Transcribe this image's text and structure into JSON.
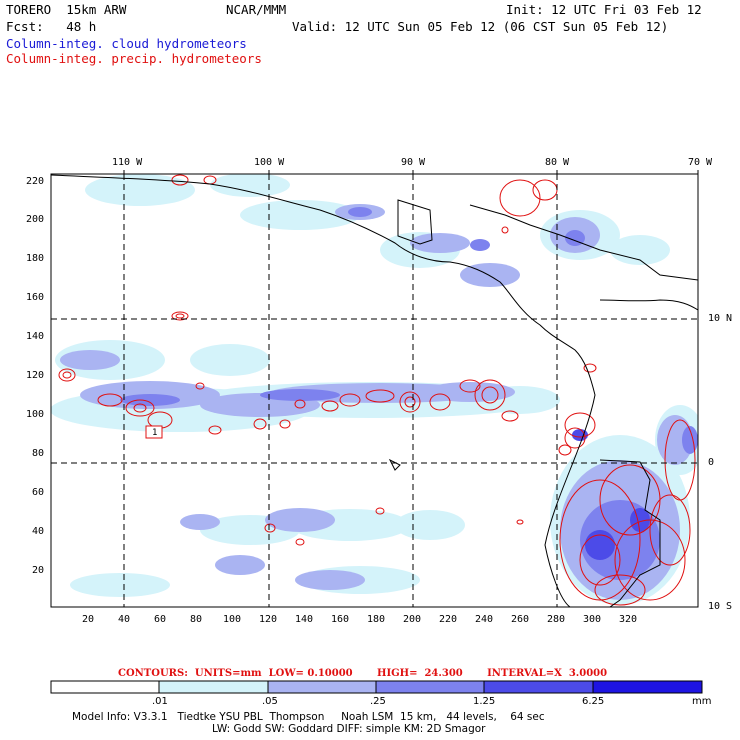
{
  "header": {
    "model": "TORERO  15km ARW",
    "org": "NCAR/MMM",
    "init": "Init: 12 UTC Fri 03 Feb 12",
    "fcst": "Fcst:   48 h",
    "valid": "Valid: 12 UTC Sun 05 Feb 12 (06 CST Sun 05 Feb 12)",
    "field1": "Column-integ. cloud hydrometeors",
    "field2": "Column-integ. precip. hydrometeors"
  },
  "colors": {
    "field1": "#1a1ad6",
    "field2": "#e01010",
    "shades": [
      "#ffffff",
      "#d4f3fa",
      "#aab4f2",
      "#7d82ee",
      "#4c4be8",
      "#1e14e2"
    ]
  },
  "axes": {
    "lon_labels": [
      "110 W",
      "100 W",
      "90 W",
      "80 W",
      "70 W"
    ],
    "lat_labels": [
      "10 N",
      "0",
      "10 S"
    ],
    "y_ticks": [
      "220",
      "200",
      "180",
      "160",
      "140",
      "120",
      "100",
      "80",
      "60",
      "40",
      "20"
    ],
    "x_ticks": [
      "20",
      "40",
      "60",
      "80",
      "100",
      "120",
      "140",
      "160",
      "180",
      "200",
      "220",
      "240",
      "260",
      "280",
      "300",
      "320"
    ]
  },
  "annotations": {
    "grid_marker": "1"
  },
  "contours": "CONTOURS:  UNITS=mm  LOW= 0.10000       HIGH=  24.300       INTERVAL=X  3.0000",
  "colorbar": {
    "labels": [
      ".01",
      ".05",
      ".25",
      "1.25",
      "6.25"
    ],
    "unit": "mm"
  },
  "footer": {
    "line1": "Model Info: V3.3.1   Tiedtke YSU PBL  Thompson     Noah LSM  15 km,   44 levels,    64 sec",
    "line2": "LW: Godd SW: Goddard DIFF: simple KM: 2D Smagor"
  }
}
